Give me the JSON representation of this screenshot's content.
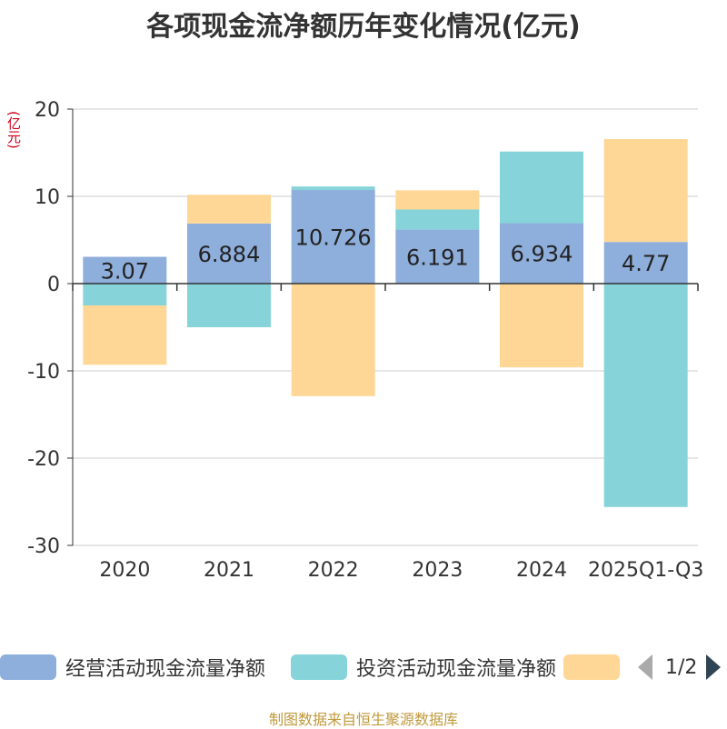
{
  "chart_data": {
    "type": "bar",
    "stacked": true,
    "title": "各项现金流净额历年变化情况(亿元)",
    "ylabel": "(亿元)",
    "xlabel": "",
    "ylim": [
      -30,
      20
    ],
    "yticks": [
      20,
      10,
      0,
      -10,
      -20,
      -30
    ],
    "categories": [
      "2020",
      "2021",
      "2022",
      "2023",
      "2024",
      "2025Q1-Q3"
    ],
    "series": [
      {
        "name": "经营活动现金流量净额",
        "color": "#8eaedb",
        "values": [
          3.07,
          6.884,
          10.726,
          6.191,
          6.934,
          4.77
        ],
        "labels": [
          "3.07",
          "6.884",
          "10.726",
          "6.191",
          "6.934",
          "4.77"
        ]
      },
      {
        "name": "投资活动现金流量净额",
        "color": "#86d4d9",
        "values": [
          -2.5,
          -5.0,
          0.4,
          2.3,
          8.2,
          -25.6
        ]
      },
      {
        "name": "",
        "color": "#fed797",
        "values": [
          -6.8,
          3.3,
          -12.9,
          2.2,
          -9.6,
          11.8
        ]
      }
    ],
    "grid": true,
    "legend_position": "bottom"
  },
  "legend": {
    "items": [
      "经营活动现金流量净额",
      "投资活动现金流量净额",
      ""
    ],
    "pager": "1/2"
  },
  "source": "制图数据来自恒生聚源数据库"
}
